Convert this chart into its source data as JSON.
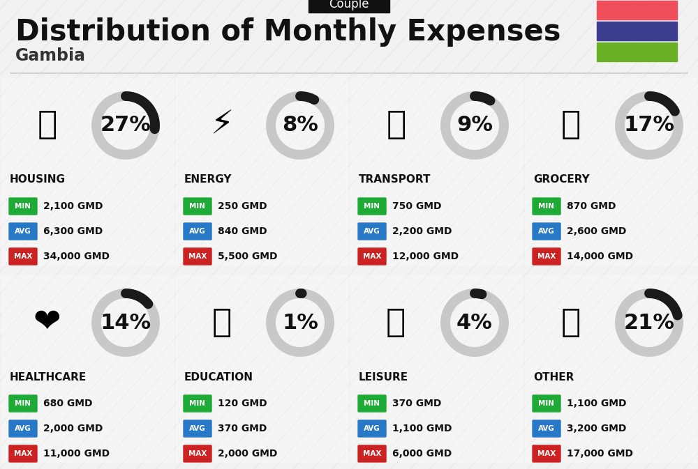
{
  "title": "Distribution of Monthly Expenses",
  "subtitle": "Couple",
  "country": "Gambia",
  "bg_color": "#f2f2f2",
  "flag_colors": [
    "#f04e5a",
    "#3c3d8f",
    "#6ab024"
  ],
  "categories": [
    {
      "name": "HOUSING",
      "pct": 27,
      "min": "2,100 GMD",
      "avg": "6,300 GMD",
      "max": "34,000 GMD",
      "col": 0,
      "row": 0
    },
    {
      "name": "ENERGY",
      "pct": 8,
      "min": "250 GMD",
      "avg": "840 GMD",
      "max": "5,500 GMD",
      "col": 1,
      "row": 0
    },
    {
      "name": "TRANSPORT",
      "pct": 9,
      "min": "750 GMD",
      "avg": "2,200 GMD",
      "max": "12,000 GMD",
      "col": 2,
      "row": 0
    },
    {
      "name": "GROCERY",
      "pct": 17,
      "min": "870 GMD",
      "avg": "2,600 GMD",
      "max": "14,000 GMD",
      "col": 3,
      "row": 0
    },
    {
      "name": "HEALTHCARE",
      "pct": 14,
      "min": "680 GMD",
      "avg": "2,000 GMD",
      "max": "11,000 GMD",
      "col": 0,
      "row": 1
    },
    {
      "name": "EDUCATION",
      "pct": 1,
      "min": "120 GMD",
      "avg": "370 GMD",
      "max": "2,000 GMD",
      "col": 1,
      "row": 1
    },
    {
      "name": "LEISURE",
      "pct": 4,
      "min": "370 GMD",
      "avg": "1,100 GMD",
      "max": "6,000 GMD",
      "col": 2,
      "row": 1
    },
    {
      "name": "OTHER",
      "pct": 21,
      "min": "1,100 GMD",
      "avg": "3,200 GMD",
      "max": "17,000 GMD",
      "col": 3,
      "row": 1
    }
  ],
  "min_color": "#1daa35",
  "avg_color": "#2878c8",
  "max_color": "#cc2222",
  "arc_color": "#1a1a1a",
  "arc_bg_color": "#c8c8c8",
  "title_fontsize": 30,
  "subtitle_fontsize": 12,
  "country_fontsize": 17,
  "pct_fontsize": 22,
  "cat_fontsize": 11,
  "badge_fontsize": 7.5,
  "val_fontsize": 10
}
